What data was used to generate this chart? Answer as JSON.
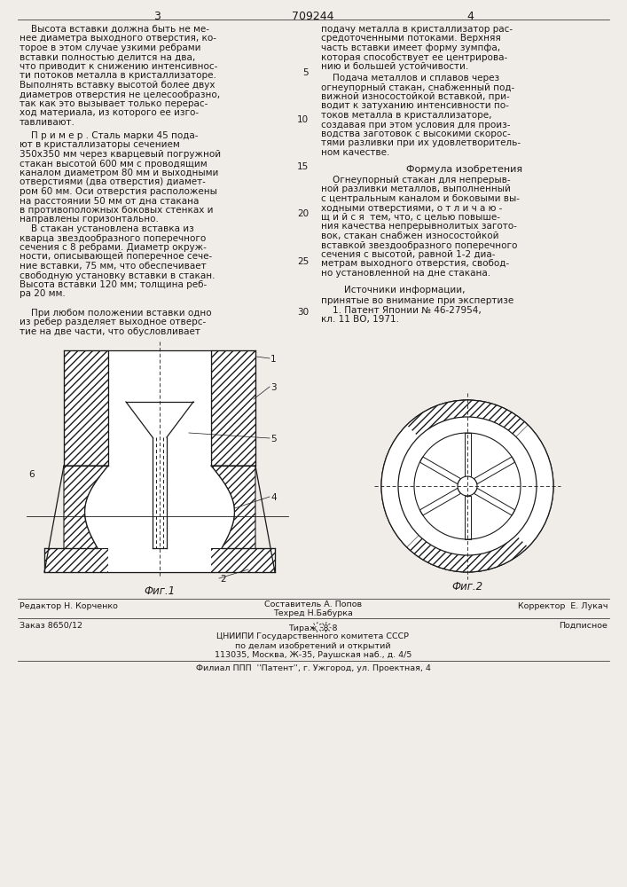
{
  "bg_color": "#f0ede8",
  "line_color": "#1a1a1a",
  "page_number_left": "3",
  "page_number_center": "709244",
  "page_number_right": "4",
  "text_left_block1": [
    "    Высота вставки должна быть не ме-",
    "нее диаметра выходного отверстия, ко-",
    "торое в этом случае узкими ребрами",
    "вставки полностью делится на два,",
    "что приводит к снижению интенсивнос-",
    "ти потоков металла в кристаллизаторе.",
    "Выполнять вставку высотой более двух",
    "диаметров отверстия не целесообразно,",
    "так как это вызывает только перерас-",
    "ход материала, из которого ее изго-",
    "тавливают."
  ],
  "text_left_block2": [
    "    П р и м е р . Сталь марки 45 пода-",
    "ют в кристаллизаторы сечением",
    "350х350 мм через кварцевый погружной",
    "стакан высотой 600 мм с проводящим",
    "каналом диаметром 80 мм и выходными",
    "отверстиями (два отверстия) диамет-",
    "ром 60 мм. Оси отверстия расположены",
    "на расстоянии 50 мм от дна стакана",
    "в противоположных боковых стенках и",
    "направлены горизонтально."
  ],
  "text_left_block3": [
    "    В стакан установлена вставка из",
    "кварца звездообразного поперечного",
    "сечения с 8 ребрами. Диаметр окруж-",
    "ности, описывающей поперечное сече-",
    "ние вставки, 75 мм, что обеспечивает",
    "свободную установку вставки в стакан.",
    "Высота вставки 120 мм; толщина реб-",
    "ра 20 мм."
  ],
  "text_left_block4": [
    "    При любом положении вставки одно",
    "из ребер разделяет выходное отверс-",
    "тие на две части, что обусловливает"
  ],
  "text_right_block1": [
    "подачу металла в кристаллизатор рас-",
    "средоточенными потоками. Верхняя",
    "часть вставки имеет форму зумпфа,",
    "которая способствует ее центрирова-",
    "нию и большей устойчивости."
  ],
  "text_right_block2": [
    "    Подача металлов и сплавов через",
    "огнеупорный стакан, снабженный под-",
    "вижной износостойкой вставкой, при-",
    "водит к затуханию интенсивности по-",
    "токов металла в кристаллизаторе,",
    "создавая при этом условия для произ-",
    "водства заготовок с высокими скорос-",
    "тями разливки при их удовлетворитель-",
    "ном качестве."
  ],
  "formula_title": "Формула изобретения",
  "formula_text": [
    "    Огнеупорный стакан для непрерыв-",
    "ной разливки металлов, выполненный",
    "с центральным каналом и боковыми вы-",
    "ходными отверстиями, о т л и ч а ю -",
    "щ и й с я  тем, что, с целью повыше-",
    "ния качества непрерывнолитых загото-",
    "вок, стакан снабжен износостойкой",
    "вставкой звездообразного поперечного",
    "сечения с высотой, равной 1-2 диа-",
    "метрам выходного отверстия, свобод-",
    "но установленной на дне стакана."
  ],
  "sources_title": "        Источники информации,",
  "sources_lines": [
    "принятые во внимание при экспертизе",
    "    1. Патент Японии № 46-27954,",
    "кл. 11 ВО, 1971."
  ],
  "line_numbers": [
    "5",
    "10",
    "15",
    "20",
    "25",
    "30"
  ],
  "fig1_caption": "Фиг.1",
  "fig2_caption": "Фиг.2",
  "footer_editor": "Редактор Н. Корченко",
  "footer_compiler": "Составитель А. Попов",
  "footer_tech": "Техред Н.Бабурка",
  "footer_corrector": "Корректор  Е. Лукач",
  "footer_order": "Заказ 8650/12",
  "footer_print": "Тираж ҉8҉8",
  "footer_subscription": "Подписное",
  "footer_org1": "ЦНИИПИ Государственного комитета СССР",
  "footer_org2": "по делам изобретений и открытий",
  "footer_org3": "113035, Москва, Ж-35, Раушская наб., д. 4/5",
  "footer_branch": "Филиал ППП  ''Патент'', г. Ужгород, ул. Проектная, 4"
}
